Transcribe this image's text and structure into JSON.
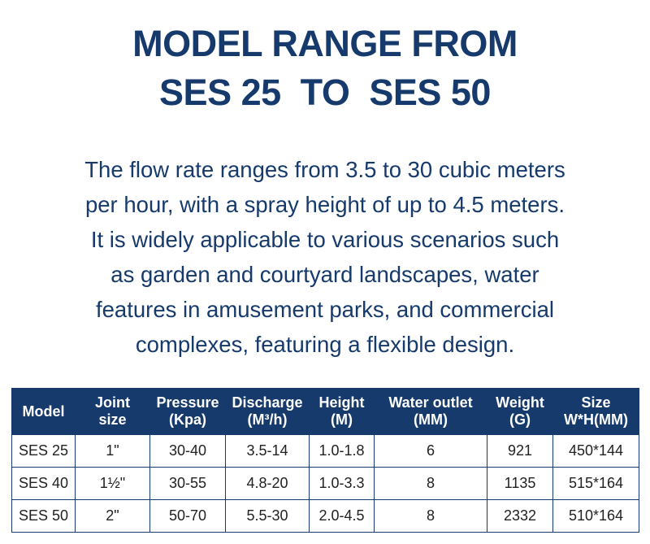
{
  "title": {
    "line1": "MODEL RANGE FROM",
    "line2": "SES 25  TO  SES 50"
  },
  "description": {
    "lines": [
      "The flow rate ranges from 3.5 to 30 cubic meters",
      "per hour, with a spray height of up to 4.5 meters.",
      "It is widely applicable to various scenarios such",
      "as garden and courtyard landscapes, water",
      "features in amusement parks, and commercial",
      "complexes, featuring a flexible design."
    ]
  },
  "table": {
    "headers": [
      [
        "Model"
      ],
      [
        "Joint",
        "size"
      ],
      [
        "Pressure",
        "(Kpa)"
      ],
      [
        "Discharge",
        "(M³/h)"
      ],
      [
        "Height",
        "(M)"
      ],
      [
        "Water outlet",
        "(MM)"
      ],
      [
        "Weight",
        "(G)"
      ],
      [
        "Size",
        "W*H(MM)"
      ]
    ],
    "rows": [
      [
        "SES 25",
        "1\"",
        "30-40",
        "3.5-14",
        "1.0-1.8",
        "6",
        "921",
        "450*144"
      ],
      [
        "SES 40",
        "1½\"",
        "30-55",
        "4.8-20",
        "1.0-3.3",
        "8",
        "1135",
        "515*164"
      ],
      [
        "SES 50",
        "2\"",
        "50-70",
        "5.5-30",
        "2.0-4.5",
        "8",
        "2332",
        "510*164"
      ]
    ]
  },
  "colors": {
    "navy": "#163a6b",
    "text": "#222222"
  }
}
